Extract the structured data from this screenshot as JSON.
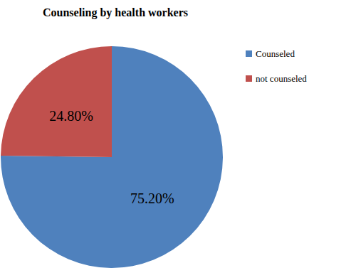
{
  "chart_data": {
    "type": "pie",
    "title": "Counseling by health workers",
    "categories": [
      "Counseled",
      "not counseled"
    ],
    "values": [
      75.2,
      24.8
    ],
    "value_labels": [
      "75.20%",
      "24.80%"
    ],
    "colors": [
      "#4f81bd",
      "#c0504d"
    ],
    "legend": "right",
    "data_labels": true
  }
}
